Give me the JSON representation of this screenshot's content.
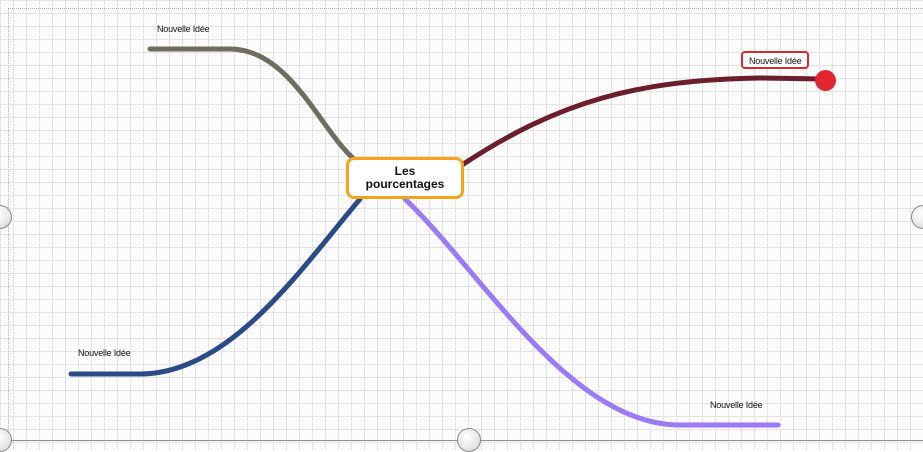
{
  "central": {
    "line1": "Les",
    "line2": "pourcentages",
    "border_color": "#f5a31a"
  },
  "branches": [
    {
      "label": "Nouvelle Idée",
      "color": "#6f6d60"
    },
    {
      "label": "Nouvelle Idée",
      "color": "#6b1e2e",
      "selected": true,
      "selection_color": "#d92b2b"
    },
    {
      "label": "Nouvelle Idée",
      "color": "#2b4a86"
    },
    {
      "label": "Nouvelle Idée",
      "color": "#9b7af6"
    }
  ],
  "selection_handle_color": "#e2262f"
}
